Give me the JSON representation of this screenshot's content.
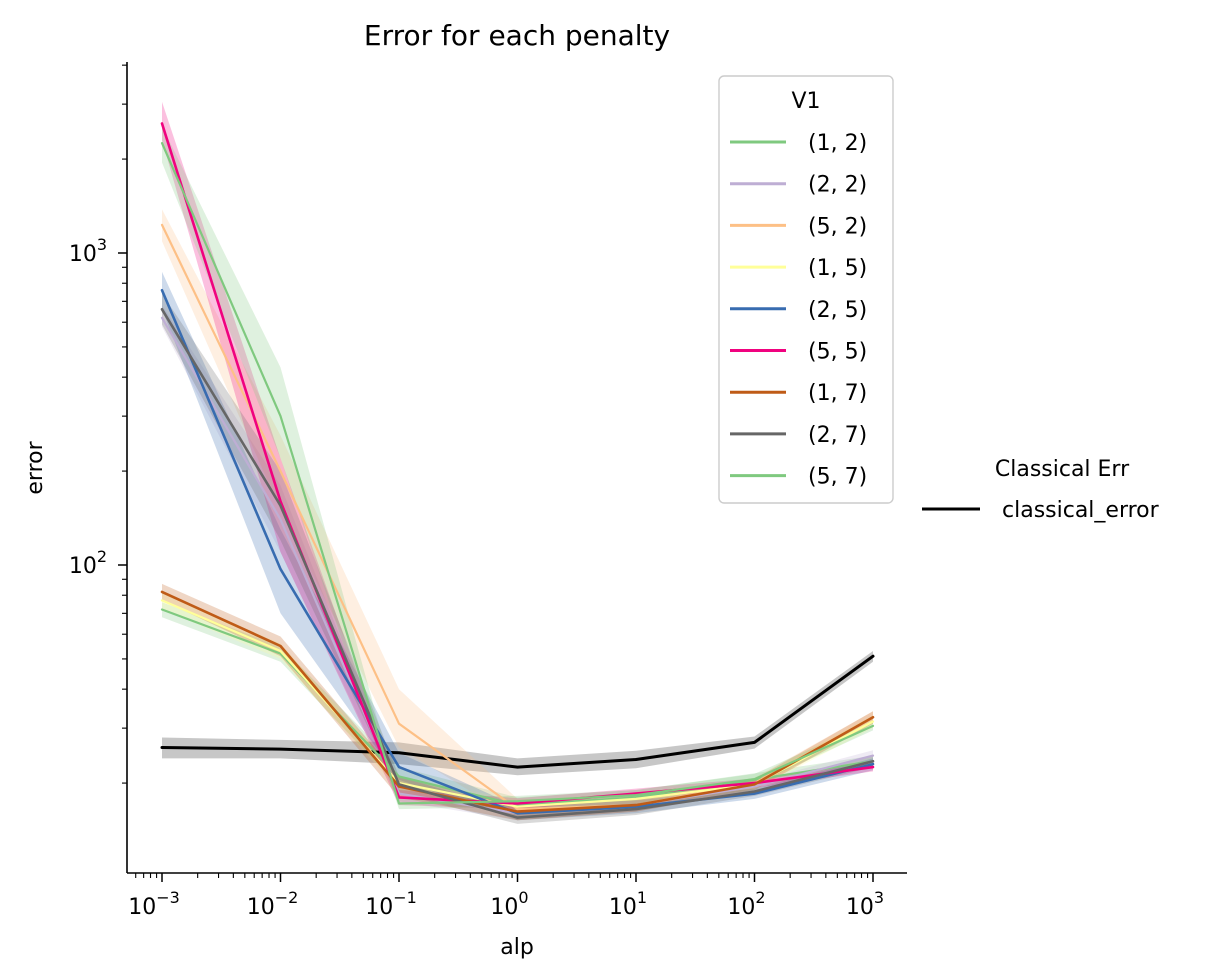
{
  "chart_data": {
    "type": "line",
    "title": "Error for each penalty",
    "xlabel": "alp",
    "ylabel": "error",
    "xscale": "log",
    "yscale": "log",
    "x": [
      0.001,
      0.01,
      0.1,
      1,
      10,
      100,
      1000
    ],
    "x_tick_labels": [
      {
        "base": "10",
        "exp": "−3"
      },
      {
        "base": "10",
        "exp": "−2"
      },
      {
        "base": "10",
        "exp": "−1"
      },
      {
        "base": "10",
        "exp": "0"
      },
      {
        "base": "10",
        "exp": "1"
      },
      {
        "base": "10",
        "exp": "2"
      },
      {
        "base": "10",
        "exp": "3"
      }
    ],
    "y_tick_labels": [
      {
        "value": 100,
        "base": "10",
        "exp": "2"
      },
      {
        "value": 1000,
        "base": "10",
        "exp": "3"
      }
    ],
    "xlim": [
      0.00063,
      2000
    ],
    "ylim": [
      9.8,
      4100
    ],
    "legend": {
      "title": "V1",
      "placement": "top-right"
    },
    "series": [
      {
        "name": "(1, 2)",
        "color": "#7fc97f",
        "width": 2.2,
        "values": [
          72,
          52,
          21,
          17,
          18,
          20.5,
          23.5
        ],
        "lower": [
          68,
          49,
          19.5,
          16,
          17,
          19.5,
          22.5
        ],
        "upper": [
          76,
          55,
          22.5,
          18,
          19,
          21.5,
          24.5
        ]
      },
      {
        "name": "(2, 2)",
        "color": "#beaed4",
        "width": 2.2,
        "values": [
          620,
          140,
          18.5,
          16,
          17,
          19.5,
          24.5
        ],
        "lower": [
          580,
          110,
          17.5,
          15.2,
          16.2,
          18.8,
          23.5
        ],
        "upper": [
          680,
          180,
          19.5,
          16.8,
          17.8,
          20.2,
          25.5
        ]
      },
      {
        "name": "(5, 2)",
        "color": "#fdc086",
        "width": 2.2,
        "values": [
          1230,
          200,
          31,
          16.5,
          17,
          20,
          32.5
        ],
        "lower": [
          1090,
          150,
          26,
          15.2,
          16.2,
          19.2,
          31
        ],
        "upper": [
          1380,
          260,
          40,
          17.8,
          17.8,
          20.8,
          34
        ]
      },
      {
        "name": "(1, 5)",
        "color": "#ffff99",
        "width": 2.2,
        "values": [
          77,
          53,
          20,
          16.8,
          17.8,
          19.8,
          31.5
        ],
        "lower": [
          72,
          50,
          19,
          16,
          17,
          19,
          30
        ],
        "upper": [
          82,
          56,
          21,
          17.6,
          18.6,
          20.6,
          33
        ]
      },
      {
        "name": "(2, 5)",
        "color": "#386cb0",
        "width": 2.6,
        "values": [
          760,
          97,
          22.5,
          16,
          16.8,
          18.5,
          23
        ],
        "lower": [
          660,
          70,
          20.5,
          15.2,
          16,
          17.8,
          22
        ],
        "upper": [
          870,
          130,
          25,
          16.8,
          17.6,
          19.2,
          24
        ]
      },
      {
        "name": "(5, 5)",
        "color": "#f0027f",
        "width": 2.6,
        "values": [
          2600,
          160,
          18,
          17.2,
          18.5,
          20,
          22.5
        ],
        "lower": [
          2300,
          110,
          17,
          16.5,
          17.8,
          19.3,
          21.8
        ],
        "upper": [
          3050,
          220,
          19,
          17.9,
          19.2,
          20.7,
          23.2
        ]
      },
      {
        "name": "(1, 7)",
        "color": "#bf5b17",
        "width": 2.6,
        "values": [
          82,
          55,
          19.5,
          16.2,
          17,
          19.8,
          32.5
        ],
        "lower": [
          77,
          51,
          18,
          15.2,
          16.2,
          19,
          31
        ],
        "upper": [
          87,
          59,
          21,
          17.2,
          17.8,
          20.6,
          34
        ]
      },
      {
        "name": "(2, 7)",
        "color": "#666666",
        "width": 2.6,
        "values": [
          660,
          155,
          19.8,
          15.5,
          16.5,
          18.8,
          23.5
        ],
        "lower": [
          590,
          120,
          18.5,
          14.8,
          15.8,
          18.2,
          22.5
        ],
        "upper": [
          740,
          200,
          21,
          16.2,
          17.2,
          19.4,
          24.5
        ]
      },
      {
        "name": "(5, 7)",
        "color": "#7fc97f",
        "width": 2.2,
        "values": [
          2250,
          300,
          17.2,
          17.5,
          18.3,
          20.6,
          30.5
        ],
        "lower": [
          1950,
          220,
          16.5,
          16.8,
          17.6,
          19.8,
          29.5
        ],
        "upper": [
          2550,
          430,
          18,
          18.2,
          19,
          21.4,
          31.5
        ]
      }
    ],
    "classical_legend": {
      "title": "Classical Err",
      "placement": "right"
    },
    "classical_series": {
      "name": "classical_error",
      "color": "#000000",
      "width": 3,
      "values": [
        26,
        25.7,
        25,
        22.5,
        23.8,
        27,
        51
      ],
      "lower": [
        24,
        24,
        23,
        21.2,
        22.3,
        25.8,
        49
      ],
      "upper": [
        28,
        27.5,
        27,
        24,
        25.4,
        28.2,
        53
      ]
    }
  }
}
